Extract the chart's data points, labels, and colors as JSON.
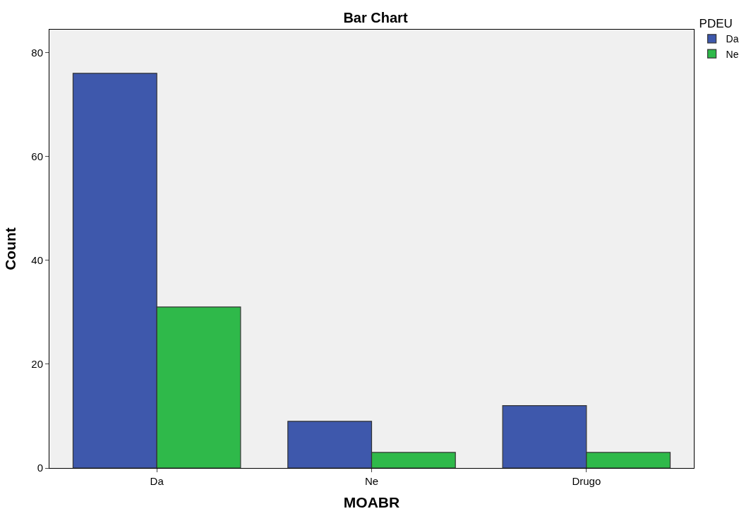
{
  "chart_data": {
    "type": "bar",
    "title": "Bar Chart",
    "xlabel": "MOABR",
    "ylabel": "Count",
    "legend_title": "PDEU",
    "categories": [
      "Da",
      "Ne",
      "Drugo"
    ],
    "series": [
      {
        "name": "Da",
        "color": "#3e58ac",
        "values": [
          76,
          9,
          12
        ]
      },
      {
        "name": "Ne",
        "color": "#2fb94a",
        "values": [
          31,
          3,
          3
        ]
      }
    ],
    "ylim": [
      0,
      84.4
    ],
    "yticks": [
      0,
      20,
      40,
      60,
      80
    ],
    "grid": false,
    "legend": "top right"
  }
}
